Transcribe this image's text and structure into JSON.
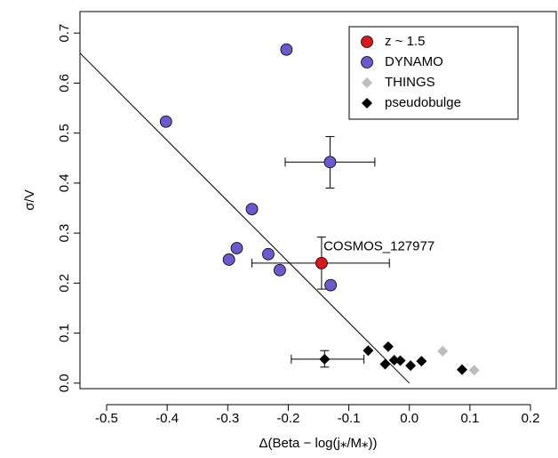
{
  "chart_data": {
    "type": "scatter",
    "xlabel": "Δ(Beta − log(j⁎/M⁎))",
    "ylabel": "σ/V",
    "xlim": [
      -0.544,
      0.244
    ],
    "ylim": [
      -0.011,
      0.743
    ],
    "xticks": [
      -0.5,
      -0.4,
      -0.3,
      -0.2,
      -0.1,
      {
        "value": 0,
        "label": "0.0"
      },
      0.1,
      0.2
    ],
    "yticks": [
      {
        "value": 0,
        "label": "0.0"
      },
      0.1,
      0.2,
      0.3,
      0.4,
      0.5,
      0.6,
      0.7
    ],
    "legend_position": "upper-right",
    "series": [
      {
        "name": "z ~ 1.5",
        "color": "#d7191c",
        "marker": "circle",
        "x": [
          -0.145
        ],
        "values": [
          0.24
        ],
        "x_error": [
          [
            -0.26,
            -0.033
          ]
        ],
        "y_error": [
          [
            0.188,
            0.292
          ]
        ]
      },
      {
        "name": "DYNAMO",
        "color": "#6a5acd",
        "marker": "circle",
        "x": [
          -0.402,
          -0.203,
          -0.131,
          -0.26,
          -0.285,
          -0.298,
          -0.233,
          -0.214,
          -0.13
        ],
        "values": [
          0.523,
          0.667,
          0.442,
          0.348,
          0.27,
          0.247,
          0.258,
          0.226,
          0.196
        ],
        "x_error": [
          null,
          null,
          [
            -0.205,
            -0.057
          ],
          null,
          null,
          null,
          null,
          null,
          null
        ],
        "y_error": [
          null,
          null,
          [
            0.39,
            0.493
          ],
          null,
          null,
          null,
          null,
          null,
          null
        ]
      },
      {
        "name": "THINGS",
        "color": "#bdbdbd",
        "marker": "diamond",
        "x": [
          0.055,
          0.107
        ],
        "values": [
          0.064,
          0.026
        ]
      },
      {
        "name": "pseudobulge",
        "color": "#000000",
        "marker": "diamond",
        "x": [
          -0.068,
          -0.035,
          -0.025,
          -0.04,
          -0.015,
          0.002,
          0.02,
          0.087,
          -0.14
        ],
        "values": [
          0.065,
          0.073,
          0.046,
          0.038,
          0.045,
          0.035,
          0.044,
          0.027,
          0.048
        ],
        "x_error": [
          null,
          null,
          null,
          null,
          null,
          null,
          null,
          null,
          [
            -0.195,
            -0.075
          ]
        ],
        "y_error": [
          null,
          null,
          null,
          null,
          null,
          null,
          null,
          null,
          [
            0.032,
            0.065
          ]
        ]
      }
    ],
    "fit_line": {
      "x": [
        -0.544,
        0.0
      ],
      "values": [
        0.66,
        0.0
      ]
    },
    "annotations": [
      {
        "text": "COSMOS_127977",
        "x": -0.05,
        "y": 0.273
      }
    ]
  }
}
